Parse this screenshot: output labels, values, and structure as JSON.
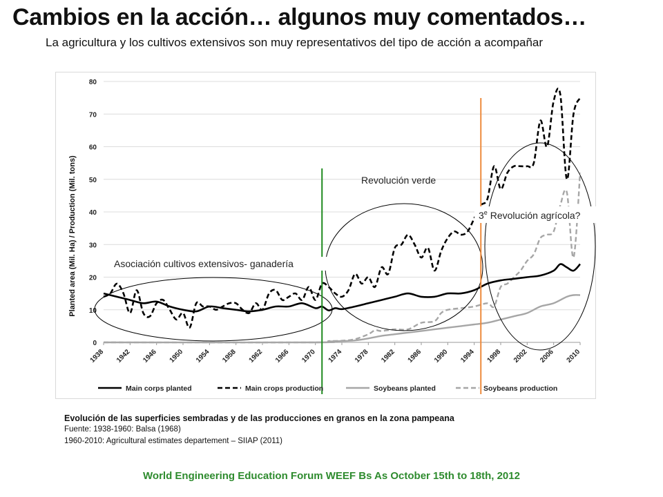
{
  "slide": {
    "title": "Cambios en la acción… algunos muy comentados…",
    "subtitle": "La agricultura y los cultivos extensivos son muy representativos del tipo de acción a acompañar",
    "caption": {
      "title": "Evolución de las superficies sembradas y de las producciones en granos en la zona pampeana",
      "line1": "Fuente: 1938-1960: Balsa (1968)",
      "line2": "1960-2010: Agricultural estimates departement – SIIAP (2011)"
    },
    "footer": "World Engineering Education Forum WEEF Bs As October 15th to 18th, 2012"
  },
  "colors": {
    "main": "#000000",
    "soy": "#a6a6a6",
    "green_line": "#1e8a1e",
    "orange_line": "#ed8a3c",
    "footer": "#2e8b2e"
  },
  "chart_data": {
    "type": "line",
    "ylabel": "Planted area (Mil. Ha) / Production (Mil. tons)",
    "ylim": [
      0,
      80
    ],
    "yticks": [
      0,
      10,
      20,
      30,
      40,
      50,
      60,
      70,
      80
    ],
    "xlim": [
      1938,
      2010
    ],
    "xticks": [
      "1938",
      "1942",
      "1946",
      "1950",
      "1954",
      "1958",
      "1962",
      "1966",
      "1970",
      "1974",
      "1978",
      "1982",
      "1986",
      "1990",
      "1994",
      "1998",
      "2002",
      "2006",
      "2010"
    ],
    "legend_position": "bottom",
    "series": [
      {
        "name": "Main corps planted",
        "style": "solid",
        "color_key": "main",
        "x": [
          1938,
          1940,
          1942,
          1944,
          1946,
          1948,
          1950,
          1952,
          1954,
          1956,
          1958,
          1960,
          1962,
          1964,
          1966,
          1968,
          1970,
          1971,
          1972,
          1973,
          1974,
          1976,
          1978,
          1980,
          1982,
          1984,
          1986,
          1988,
          1990,
          1992,
          1994,
          1996,
          1998,
          2000,
          2002,
          2004,
          2006,
          2007,
          2008,
          2009,
          2010
        ],
        "y": [
          15,
          14,
          13,
          12,
          12.5,
          11,
          10,
          9.5,
          11,
          10.5,
          10,
          9.5,
          10,
          11,
          11,
          12,
          10.5,
          11,
          9.8,
          10.5,
          10.2,
          11,
          12,
          13,
          14,
          15,
          14,
          14,
          15,
          15,
          16,
          18,
          19,
          19.5,
          20,
          20.5,
          22,
          24,
          23,
          22,
          24
        ]
      },
      {
        "name": "Main crops production",
        "style": "dashed",
        "color_key": "main",
        "x": [
          1938,
          1939,
          1940,
          1941,
          1942,
          1943,
          1944,
          1945,
          1946,
          1947,
          1948,
          1949,
          1950,
          1951,
          1952,
          1953,
          1954,
          1955,
          1956,
          1957,
          1958,
          1959,
          1960,
          1961,
          1962,
          1963,
          1964,
          1965,
          1966,
          1967,
          1968,
          1969,
          1970,
          1971,
          1972,
          1973,
          1974,
          1975,
          1976,
          1977,
          1978,
          1979,
          1980,
          1981,
          1982,
          1983,
          1984,
          1985,
          1986,
          1987,
          1988,
          1989,
          1990,
          1991,
          1992,
          1993,
          1994,
          1995,
          1996,
          1997,
          1998,
          1999,
          2000,
          2001,
          2002,
          2003,
          2004,
          2005,
          2006,
          2007,
          2008,
          2009,
          2010
        ],
        "y": [
          14,
          15,
          18,
          15,
          9,
          16,
          9,
          8,
          12,
          13,
          10,
          7,
          9,
          4.5,
          12,
          11,
          11,
          10,
          11,
          12,
          12,
          10,
          9,
          12,
          10,
          15,
          16,
          13,
          14,
          15,
          13,
          17,
          13,
          18,
          17,
          15,
          14,
          16,
          21,
          18,
          20,
          17,
          23,
          21,
          29,
          30,
          33,
          30,
          26,
          29,
          22,
          28,
          32,
          34,
          33,
          34,
          38,
          42,
          44,
          54,
          47,
          52,
          54,
          54,
          54,
          55,
          68,
          60,
          74,
          76,
          50,
          70,
          75
        ]
      },
      {
        "name": "Soybeans planted",
        "style": "solid",
        "color_key": "soy",
        "x": [
          1938,
          1970,
          1972,
          1974,
          1976,
          1978,
          1980,
          1982,
          1984,
          1986,
          1988,
          1990,
          1992,
          1994,
          1996,
          1998,
          2000,
          2002,
          2004,
          2006,
          2008,
          2009,
          2010
        ],
        "y": [
          0,
          0,
          0.3,
          0.4,
          0.6,
          1.2,
          2,
          2.5,
          3,
          3.5,
          4,
          4.5,
          5,
          5.5,
          6,
          7,
          8,
          9,
          11,
          12,
          14,
          14.5,
          14.5
        ]
      },
      {
        "name": "Soybeans production",
        "style": "dashed",
        "color_key": "soy",
        "x": [
          1938,
          1970,
          1972,
          1974,
          1976,
          1978,
          1979,
          1980,
          1982,
          1984,
          1986,
          1988,
          1989,
          1990,
          1992,
          1994,
          1996,
          1997,
          1998,
          1999,
          2000,
          2001,
          2002,
          2003,
          2004,
          2005,
          2006,
          2007,
          2008,
          2009,
          2010
        ],
        "y": [
          0,
          0,
          0.4,
          0.5,
          1,
          2.5,
          3.7,
          3.5,
          4,
          4,
          6,
          6.5,
          9,
          10,
          10.5,
          11,
          12,
          11,
          17,
          18,
          20,
          22,
          25,
          27,
          32,
          33,
          34,
          42,
          46,
          26,
          52
        ]
      }
    ],
    "annotations": {
      "asociacion": "Asociación cultivos extensivos- ganadería",
      "revolucion_verde": "Revolución verde",
      "tercera_prefix": "3",
      "tercera_sup": "e",
      "tercera_rest": " Revolución agrícola?"
    },
    "vertical_markers": [
      {
        "name": "green-marker",
        "x": 1971,
        "color_key": "green_line"
      },
      {
        "name": "orange-marker",
        "x": 1995,
        "color_key": "orange_line"
      }
    ]
  }
}
